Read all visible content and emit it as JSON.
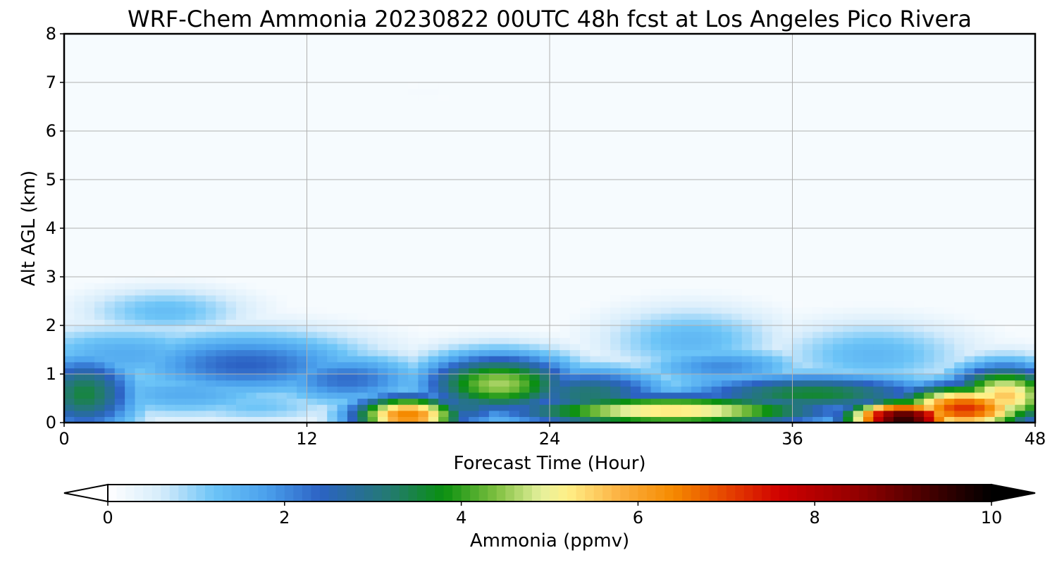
{
  "chart_data": {
    "type": "heatmap",
    "title": "WRF-Chem Ammonia  20230822 00UTC 48h fcst at Los Angeles Pico Rivera",
    "xlabel": "Forecast Time (Hour)",
    "ylabel": "Alt AGL (km)",
    "xlim": [
      0,
      48
    ],
    "ylim": [
      0,
      8
    ],
    "xticks": [
      0,
      12,
      24,
      36,
      48
    ],
    "yticks": [
      0,
      1,
      2,
      3,
      4,
      5,
      6,
      7,
      8
    ],
    "grid": true,
    "colorbar": {
      "label": "Ammonia  (ppmv)",
      "range": [
        0,
        10
      ],
      "ticks": [
        0,
        2,
        4,
        6,
        8,
        10
      ],
      "extend": "both",
      "stops": [
        {
          "v": 0,
          "c": "#ffffff"
        },
        {
          "v": 0.6,
          "c": "#d6ecfb"
        },
        {
          "v": 1.2,
          "c": "#6cc4f7"
        },
        {
          "v": 1.8,
          "c": "#4aa0ec"
        },
        {
          "v": 2.4,
          "c": "#2c62c4"
        },
        {
          "v": 3.2,
          "c": "#237a70"
        },
        {
          "v": 3.8,
          "c": "#0a9010"
        },
        {
          "v": 4.4,
          "c": "#7fc040"
        },
        {
          "v": 4.9,
          "c": "#e5f09c"
        },
        {
          "v": 5.2,
          "c": "#fff088"
        },
        {
          "v": 5.8,
          "c": "#fcb040"
        },
        {
          "v": 6.4,
          "c": "#f58a00"
        },
        {
          "v": 7.0,
          "c": "#e64400"
        },
        {
          "v": 7.6,
          "c": "#d00000"
        },
        {
          "v": 8.6,
          "c": "#8a0000"
        },
        {
          "v": 9.4,
          "c": "#3a0000"
        },
        {
          "v": 10,
          "c": "#000000"
        }
      ]
    },
    "field": {
      "description_units": "ppmv",
      "background": 0.05,
      "features": [
        {
          "x": 17.8,
          "y": 6.8,
          "sx": 2.0,
          "sy": 0.25,
          "a": 0.15
        },
        {
          "x": 5.0,
          "y": 2.3,
          "sx": 3.0,
          "sy": 0.35,
          "a": 1.3
        },
        {
          "x": 3.0,
          "y": 1.4,
          "sx": 4.0,
          "sy": 0.45,
          "a": 1.6
        },
        {
          "x": 9.0,
          "y": 1.2,
          "sx": 4.5,
          "sy": 0.5,
          "a": 2.4
        },
        {
          "x": 1.0,
          "y": 0.6,
          "sx": 2.0,
          "sy": 0.6,
          "a": 3.5
        },
        {
          "x": 6.0,
          "y": 0.6,
          "sx": 4.0,
          "sy": 0.35,
          "a": 1.6
        },
        {
          "x": 9.5,
          "y": 0.35,
          "sx": 3.0,
          "sy": 0.25,
          "a": 1.2
        },
        {
          "x": 14.0,
          "y": 0.9,
          "sx": 3.0,
          "sy": 0.4,
          "a": 2.3
        },
        {
          "x": 21.5,
          "y": 0.8,
          "sx": 2.8,
          "sy": 0.45,
          "a": 4.6
        },
        {
          "x": 17.0,
          "y": 0.15,
          "sx": 2.0,
          "sy": 0.3,
          "a": 6.5
        },
        {
          "x": 20.0,
          "y": 0.4,
          "sx": 1.6,
          "sy": 0.4,
          "a": 3.0
        },
        {
          "x": 26.0,
          "y": 0.6,
          "sx": 3.0,
          "sy": 0.4,
          "a": 3.2
        },
        {
          "x": 31.0,
          "y": 1.7,
          "sx": 3.2,
          "sy": 0.5,
          "a": 1.4
        },
        {
          "x": 32.5,
          "y": 1.15,
          "sx": 3.0,
          "sy": 0.3,
          "a": 2.0
        },
        {
          "x": 40.0,
          "y": 1.4,
          "sx": 3.5,
          "sy": 0.5,
          "a": 1.4
        },
        {
          "x": 30.0,
          "y": 0.25,
          "sx": 6.0,
          "sy": 0.25,
          "a": 5.4
        },
        {
          "x": 37.0,
          "y": 0.6,
          "sx": 5.0,
          "sy": 0.3,
          "a": 3.6
        },
        {
          "x": 41.5,
          "y": 0.1,
          "sx": 2.0,
          "sy": 0.25,
          "a": 9.6
        },
        {
          "x": 44.5,
          "y": 0.3,
          "sx": 2.5,
          "sy": 0.35,
          "a": 7.2
        },
        {
          "x": 46.5,
          "y": 0.55,
          "sx": 2.0,
          "sy": 0.45,
          "a": 5.6
        }
      ]
    }
  }
}
